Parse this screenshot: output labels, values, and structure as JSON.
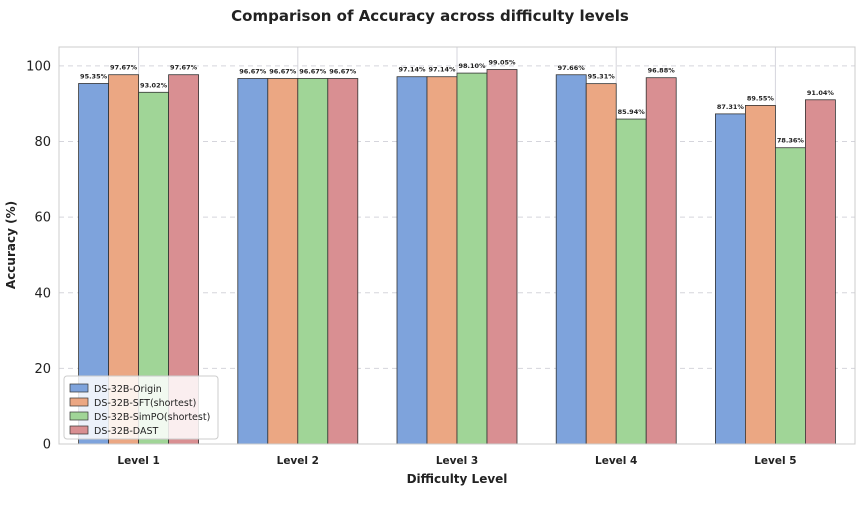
{
  "chart_data": {
    "type": "bar",
    "title": "Comparison of Accuracy across difficulty levels",
    "xlabel": "Difficulty Level",
    "ylabel": "Accuracy (%)",
    "ylim": [
      0,
      105
    ],
    "yticks": [
      0,
      20,
      40,
      60,
      80,
      100
    ],
    "grid": true,
    "legend_position": "bottom-left",
    "categories": [
      "Level 1",
      "Level 2",
      "Level 3",
      "Level 4",
      "Level 5"
    ],
    "series": [
      {
        "name": "DS-32B-Origin",
        "color": "#7ea3dc",
        "values": [
          95.35,
          96.67,
          97.14,
          97.66,
          87.31
        ],
        "labels": [
          "95.35%",
          "96.67%",
          "97.14%",
          "97.66%",
          "87.31%"
        ]
      },
      {
        "name": "DS-32B-SFT(shortest)",
        "color": "#eba783",
        "values": [
          97.67,
          96.67,
          97.14,
          95.31,
          89.55
        ],
        "labels": [
          "97.67%",
          "96.67%",
          "97.14%",
          "95.31%",
          "89.55%"
        ]
      },
      {
        "name": "DS-32B-SimPO(shortest)",
        "color": "#a0d597",
        "values": [
          93.02,
          96.67,
          98.1,
          85.94,
          78.36
        ],
        "labels": [
          "93.02%",
          "96.67%",
          "98.10%",
          "85.94%",
          "78.36%"
        ]
      },
      {
        "name": "DS-32B-DAST",
        "color": "#d98f92",
        "values": [
          97.67,
          96.67,
          99.05,
          96.88,
          91.04
        ],
        "labels": [
          "97.67%",
          "96.67%",
          "99.05%",
          "96.88%",
          "91.04%"
        ]
      }
    ]
  }
}
